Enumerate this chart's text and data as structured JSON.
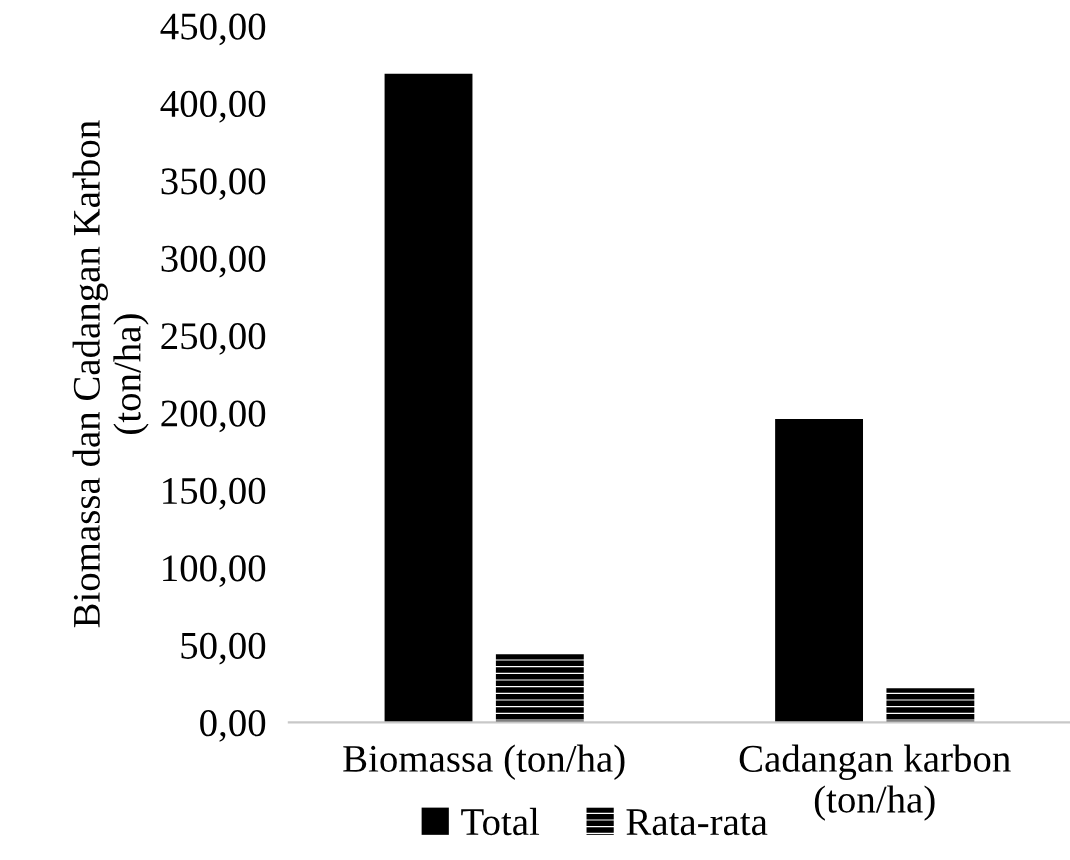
{
  "chart_data": {
    "type": "bar",
    "ylabel": "Biomassa dan Cadangan Karbon\n(ton/ha)",
    "categories": [
      "Biomassa (ton/ha)",
      "Cadangan karbon\n(ton/ha)"
    ],
    "series": [
      {
        "name": "Total",
        "color": "#000000",
        "values": [
          419,
          196
        ]
      },
      {
        "name": "Rata-rata",
        "color": "#000000",
        "values": [
          44,
          22
        ]
      }
    ],
    "ylim": [
      0,
      450
    ],
    "yticks": [
      {
        "value": 0,
        "label": "0,00"
      },
      {
        "value": 50,
        "label": "50,00"
      },
      {
        "value": 100,
        "label": "100,00"
      },
      {
        "value": 150,
        "label": "150,00"
      },
      {
        "value": 200,
        "label": "200,00"
      },
      {
        "value": 250,
        "label": "250,00"
      },
      {
        "value": 300,
        "label": "300,00"
      },
      {
        "value": 350,
        "label": "350,00"
      },
      {
        "value": 400,
        "label": "400,00"
      },
      {
        "value": 450,
        "label": "450,00"
      }
    ],
    "grid": false,
    "legend": "bottom"
  }
}
